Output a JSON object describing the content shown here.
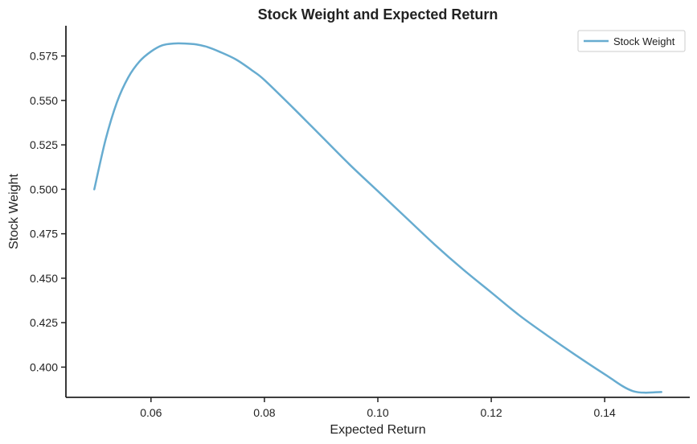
{
  "chart_data": {
    "type": "line",
    "title": "Stock Weight and Expected Return",
    "xlabel": "Expected Return",
    "ylabel": "Stock Weight",
    "xlim": [
      0.045,
      0.155
    ],
    "ylim": [
      0.383,
      0.592
    ],
    "x_ticks": [
      "0.06",
      "0.08",
      "0.10",
      "0.12",
      "0.14"
    ],
    "y_ticks": [
      "0.400",
      "0.425",
      "0.450",
      "0.475",
      "0.500",
      "0.525",
      "0.550",
      "0.575"
    ],
    "grid": false,
    "legend_position": "top-right",
    "series": [
      {
        "name": "Stock Weight",
        "color": "#67acd0",
        "x": [
          0.05,
          0.052,
          0.054,
          0.056,
          0.058,
          0.06,
          0.062,
          0.064,
          0.066,
          0.068,
          0.07,
          0.072,
          0.075,
          0.078,
          0.08,
          0.085,
          0.09,
          0.095,
          0.1,
          0.105,
          0.11,
          0.115,
          0.12,
          0.125,
          0.13,
          0.135,
          0.14,
          0.145,
          0.15
        ],
        "y": [
          0.5,
          0.528,
          0.549,
          0.563,
          0.572,
          0.5775,
          0.581,
          0.582,
          0.582,
          0.5815,
          0.58,
          0.5775,
          0.573,
          0.5665,
          0.5615,
          0.546,
          0.53,
          0.514,
          0.499,
          0.484,
          0.469,
          0.455,
          0.442,
          0.429,
          0.4175,
          0.4065,
          0.396,
          0.3865,
          0.386
        ]
      }
    ]
  }
}
